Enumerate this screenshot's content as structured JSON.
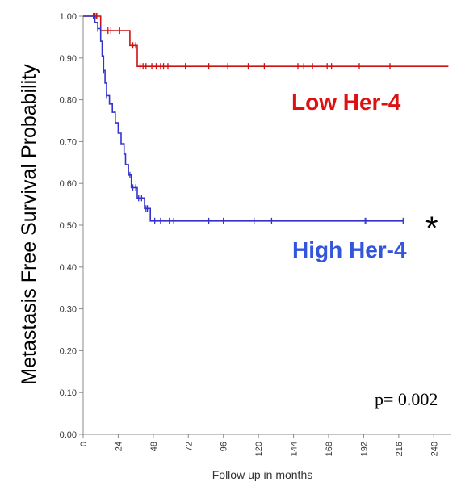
{
  "chart_data": {
    "type": "line",
    "subtype": "kaplan-meier",
    "ylabel": "Metastasis Free Survival Probability",
    "xlabel": "Follow up in months",
    "xlim": [
      0,
      252
    ],
    "ylim": [
      0,
      1
    ],
    "x_ticks": [
      0,
      24,
      48,
      72,
      96,
      120,
      144,
      168,
      192,
      216,
      240
    ],
    "x_tick_labels": [
      "0",
      "24",
      "48",
      "72",
      "96",
      "120",
      "144",
      "168",
      "192",
      "216",
      "240"
    ],
    "y_ticks": [
      0,
      0.1,
      0.2,
      0.3,
      0.4,
      0.5,
      0.6,
      0.7,
      0.8,
      0.9,
      1.0
    ],
    "y_tick_labels": [
      "0.00",
      "0.10",
      "0.20",
      "0.30",
      "0.40",
      "0.50",
      "0.60",
      "0.70",
      "0.80",
      "0.90",
      "1.00"
    ],
    "series": [
      {
        "name": "Low Her-4",
        "color": "#cc1111",
        "steps": [
          [
            0,
            1.0
          ],
          [
            12,
            1.0
          ],
          [
            12,
            0.965
          ],
          [
            32,
            0.965
          ],
          [
            32,
            0.93
          ],
          [
            37,
            0.93
          ],
          [
            37,
            0.88
          ],
          [
            250,
            0.88
          ]
        ],
        "censors": [
          [
            7,
            1.0
          ],
          [
            8,
            1.0
          ],
          [
            9,
            1.0
          ],
          [
            10,
            1.0
          ],
          [
            17,
            0.965
          ],
          [
            19,
            0.965
          ],
          [
            25,
            0.965
          ],
          [
            34,
            0.93
          ],
          [
            36,
            0.93
          ],
          [
            39,
            0.88
          ],
          [
            41,
            0.88
          ],
          [
            43,
            0.88
          ],
          [
            47,
            0.88
          ],
          [
            50,
            0.88
          ],
          [
            53,
            0.88
          ],
          [
            55,
            0.88
          ],
          [
            58,
            0.88
          ],
          [
            70,
            0.88
          ],
          [
            86,
            0.88
          ],
          [
            99,
            0.88
          ],
          [
            113,
            0.88
          ],
          [
            124,
            0.88
          ],
          [
            147,
            0.88
          ],
          [
            151,
            0.88
          ],
          [
            157,
            0.88
          ],
          [
            167,
            0.88
          ],
          [
            170,
            0.88
          ],
          [
            189,
            0.88
          ],
          [
            210,
            0.88
          ]
        ]
      },
      {
        "name": "High Her-4",
        "color": "#3333cc",
        "steps": [
          [
            0,
            1.0
          ],
          [
            8,
            1.0
          ],
          [
            8,
            0.985
          ],
          [
            10,
            0.985
          ],
          [
            10,
            0.97
          ],
          [
            12,
            0.97
          ],
          [
            12,
            0.94
          ],
          [
            13,
            0.94
          ],
          [
            13,
            0.905
          ],
          [
            14,
            0.905
          ],
          [
            14,
            0.87
          ],
          [
            15,
            0.87
          ],
          [
            15,
            0.84
          ],
          [
            16,
            0.84
          ],
          [
            16,
            0.81
          ],
          [
            18,
            0.81
          ],
          [
            18,
            0.79
          ],
          [
            20,
            0.79
          ],
          [
            20,
            0.77
          ],
          [
            22,
            0.77
          ],
          [
            22,
            0.745
          ],
          [
            24,
            0.745
          ],
          [
            24,
            0.72
          ],
          [
            26,
            0.72
          ],
          [
            26,
            0.695
          ],
          [
            28,
            0.695
          ],
          [
            28,
            0.67
          ],
          [
            29,
            0.67
          ],
          [
            29,
            0.645
          ],
          [
            31,
            0.645
          ],
          [
            31,
            0.62
          ],
          [
            33,
            0.62
          ],
          [
            33,
            0.59
          ],
          [
            37,
            0.59
          ],
          [
            37,
            0.565
          ],
          [
            42,
            0.565
          ],
          [
            42,
            0.54
          ],
          [
            46,
            0.54
          ],
          [
            46,
            0.51
          ],
          [
            219,
            0.51
          ]
        ],
        "censors": [
          [
            10,
            0.97
          ],
          [
            12,
            0.97
          ],
          [
            14,
            0.87
          ],
          [
            16,
            0.81
          ],
          [
            32,
            0.62
          ],
          [
            34,
            0.59
          ],
          [
            36,
            0.59
          ],
          [
            38,
            0.565
          ],
          [
            40,
            0.565
          ],
          [
            43,
            0.54
          ],
          [
            44,
            0.54
          ],
          [
            49,
            0.51
          ],
          [
            53,
            0.51
          ],
          [
            59,
            0.51
          ],
          [
            62,
            0.51
          ],
          [
            86,
            0.51
          ],
          [
            96,
            0.51
          ],
          [
            117,
            0.51
          ],
          [
            129,
            0.51
          ],
          [
            193,
            0.51
          ],
          [
            194,
            0.51
          ],
          [
            219,
            0.51
          ]
        ]
      }
    ],
    "annotations": {
      "low_label": "Low Her-4",
      "high_label": "High Her-4",
      "significance": "*",
      "pvalue": "p= 0.002"
    }
  }
}
